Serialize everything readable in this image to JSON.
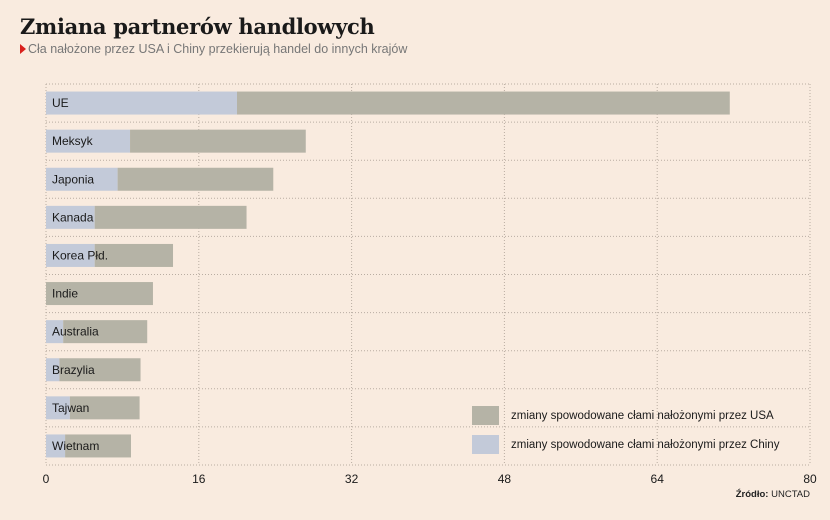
{
  "title": "Zmiana partnerów handlowych",
  "subtitle": "Cła nałożone przez USA i Chiny przekierują handel do innych krajów",
  "source_label": "Źródło:",
  "source_value": "UNCTAD",
  "colors": {
    "usa": "#b5b3a6",
    "china": "#c3cad9",
    "background": "#f9ebdf"
  },
  "chart_data": {
    "type": "bar",
    "orientation": "horizontal",
    "stacked": true,
    "categories": [
      "UE",
      "Meksyk",
      "Japonia",
      "Kanada",
      "Korea Płd.",
      "Indie",
      "Australia",
      "Brazylia",
      "Tajwan",
      "Wietnam"
    ],
    "series": [
      {
        "name": "zmiany spowodowane cłami nałożonymi przez Chiny",
        "color": "#c3cad9",
        "values": [
          20.0,
          8.8,
          7.5,
          5.1,
          5.1,
          0,
          1.8,
          1.4,
          2.5,
          2.0
        ]
      },
      {
        "name": "zmiany spowodowane cłami nałożonymi przez USA",
        "color": "#b5b3a6",
        "values": [
          51.6,
          18.4,
          16.3,
          15.9,
          8.2,
          11.2,
          8.8,
          8.5,
          7.3,
          6.9
        ]
      }
    ],
    "xlim": [
      0,
      80
    ],
    "xticks": [
      0,
      16,
      32,
      48,
      64,
      80
    ],
    "grid": true,
    "legend_position": "bottom-right"
  }
}
